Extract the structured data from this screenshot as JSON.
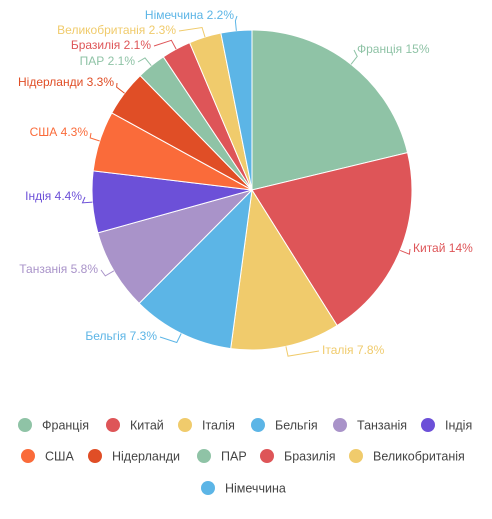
{
  "chart_data": {
    "type": "pie",
    "categories": [
      "Франція",
      "Китай",
      "Італія",
      "Бельгія",
      "Танзанія",
      "Індія",
      "США",
      "Нідерланди",
      "ПАР",
      "Бразилія",
      "Великобританія",
      "Німеччина"
    ],
    "values": [
      15,
      14,
      7.8,
      7.3,
      5.8,
      4.4,
      4.3,
      3.3,
      2.1,
      2.1,
      2.3,
      2.2
    ],
    "value_labels": [
      "15%",
      "14%",
      "7.8%",
      "7.3%",
      "5.8%",
      "4.4%",
      "4.3%",
      "3.3%",
      "2.1%",
      "2.1%",
      "2.3%",
      "2.2%"
    ],
    "colors": [
      "#8fc3a6",
      "#de5558",
      "#f0cb6c",
      "#5cb5e6",
      "#a993c9",
      "#6c50d8",
      "#fa6b3a",
      "#e04e26",
      "#8fc3a6",
      "#de5558",
      "#f0cb6c",
      "#5cb5e6"
    ],
    "legend": "bottom"
  }
}
